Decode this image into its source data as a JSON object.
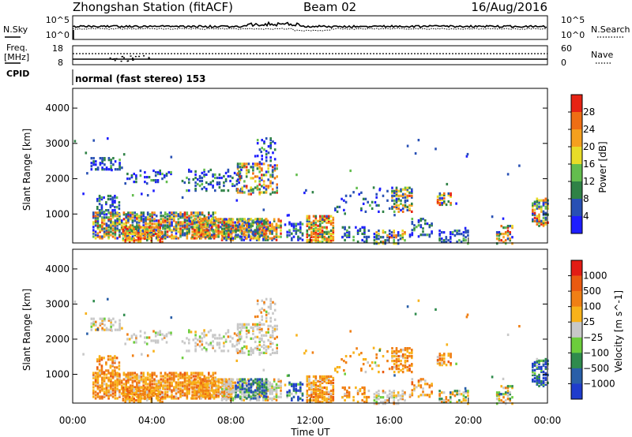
{
  "header": {
    "station": "Zhongshan Station (fitACF)",
    "beam": "Beam 02",
    "date": "16/Aug/2016"
  },
  "noise_panel": {
    "left_label": "N.Sky",
    "right_label": "N.Search",
    "left_ticks": [
      "10^5",
      "10^0"
    ],
    "right_ticks": [
      "10^5",
      "10^0"
    ]
  },
  "freq_panel": {
    "left_label_1": "Freq.",
    "left_label_2": "[MHz]",
    "right_label": "Nave",
    "left_ticks": [
      "18",
      "8"
    ],
    "right_ticks": [
      "60",
      "0"
    ]
  },
  "cpid_panel": {
    "label": "CPID",
    "text": "normal (fast stereo) 153"
  },
  "chart_data": [
    {
      "type": "heatmap",
      "title": "Power",
      "ylabel": "Slant Range [km]",
      "ylim": [
        180,
        4560
      ],
      "yticks": [
        "1000",
        "2000",
        "3000",
        "4000"
      ],
      "colorbar_label": "Power [dB]",
      "colorbar_ticks": [
        "4",
        "8",
        "12",
        "16",
        "20",
        "24",
        "28"
      ],
      "colors": [
        "#1e1eff",
        "#2850b4",
        "#2f8246",
        "#63bd4e",
        "#e8dc28",
        "#f5a01e",
        "#ef6e14",
        "#e62314"
      ]
    },
    {
      "type": "heatmap",
      "title": "Velocity",
      "ylabel": "Slant Range [km]",
      "ylim": [
        180,
        4560
      ],
      "yticks": [
        "1000",
        "2000",
        "3000",
        "4000"
      ],
      "colorbar_label": "Velocity [m s^-1]",
      "colorbar_ticks": [
        "1000",
        "500",
        "100",
        "25",
        "−25",
        "−100",
        "−500",
        "−1000"
      ],
      "colors": [
        "#1f3ccc",
        "#2a5fa8",
        "#2f8b4d",
        "#6ccd3c",
        "#c8c8c8",
        "#f8b21a",
        "#f07f14",
        "#ea5a10",
        "#e21c14"
      ]
    }
  ],
  "x_axis": {
    "label": "Time UT",
    "ticks": [
      "00:00",
      "04:00",
      "08:00",
      "12:00",
      "16:00",
      "20:00",
      "00:00"
    ]
  }
}
